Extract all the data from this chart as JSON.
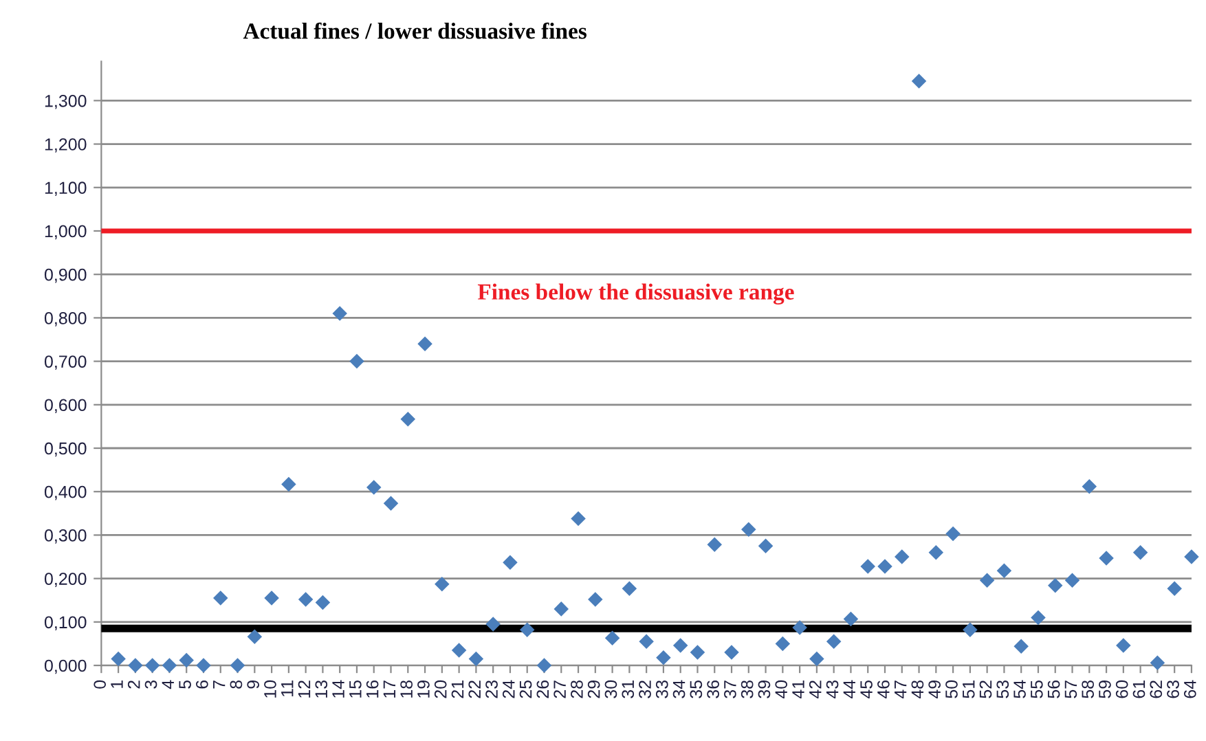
{
  "chart_data": {
    "type": "scatter",
    "title": "Actual fines / lower dissuasive fines",
    "categories": [
      "0",
      "1",
      "2",
      "3",
      "4",
      "5",
      "6",
      "7",
      "8",
      "9",
      "10",
      "11",
      "12",
      "13",
      "14",
      "15",
      "16",
      "17",
      "18",
      "19",
      "20",
      "21",
      "22",
      "23",
      "24",
      "25",
      "26",
      "27",
      "28",
      "29",
      "30",
      "31",
      "32",
      "33",
      "34",
      "35",
      "36",
      "37",
      "38",
      "39",
      "40",
      "41",
      "42",
      "43",
      "44",
      "45",
      "46",
      "47",
      "48",
      "49",
      "50",
      "51",
      "52",
      "53",
      "54",
      "55",
      "56",
      "57",
      "58",
      "59",
      "60",
      "61",
      "62",
      "63",
      "64"
    ],
    "series": [
      {
        "color": "#4a7ebb",
        "values": [
          null,
          0.015,
          0,
          0,
          0,
          0.012,
          0,
          0.155,
          0,
          0.066,
          0.155,
          0.417,
          0.152,
          0.145,
          0.81,
          0.7,
          0.41,
          0.373,
          0.567,
          0.74,
          0.187,
          0.035,
          0.015,
          0.095,
          0.237,
          0.082,
          0,
          0.13,
          0.338,
          0.152,
          0.063,
          0.177,
          0.055,
          0.018,
          0.046,
          0.03,
          0.278,
          0.03,
          0.313,
          0.275,
          0.05,
          0.087,
          0.015,
          0.055,
          0.107,
          0.228,
          0.228,
          0.25,
          1.345,
          0.26,
          0.303,
          0.082,
          0.196,
          0.218,
          0.044,
          0.11,
          0.184,
          0.196,
          0.412,
          0.247,
          0.046,
          0.26,
          0.006,
          0.177,
          0.25
        ]
      }
    ],
    "ylim": [
      0,
      1.39
    ],
    "yticks": [
      {
        "value": 0,
        "label": "0,000"
      },
      {
        "value": 0.1,
        "label": "0,100"
      },
      {
        "value": 0.2,
        "label": "0,200"
      },
      {
        "value": 0.3,
        "label": "0,300"
      },
      {
        "value": 0.4,
        "label": "0,400"
      },
      {
        "value": 0.5,
        "label": "0,500"
      },
      {
        "value": 0.6,
        "label": "0,600"
      },
      {
        "value": 0.7,
        "label": "0,700"
      },
      {
        "value": 0.8,
        "label": "0,800"
      },
      {
        "value": 0.9,
        "label": "0,900"
      },
      {
        "value": 1.0,
        "label": "1,000"
      },
      {
        "value": 1.1,
        "label": "1,100"
      },
      {
        "value": 1.2,
        "label": "1,200"
      },
      {
        "value": 1.3,
        "label": "1,300"
      }
    ],
    "grid": "y",
    "marker": "diamond",
    "ref_lines": [
      {
        "axis": "y",
        "value": 1.0,
        "color": "#ee1c25",
        "label": null
      },
      {
        "axis": "y",
        "value": 0.085,
        "color": "#000000",
        "label": null
      }
    ],
    "annotations": [
      "Fines below the dissuasive range"
    ]
  }
}
